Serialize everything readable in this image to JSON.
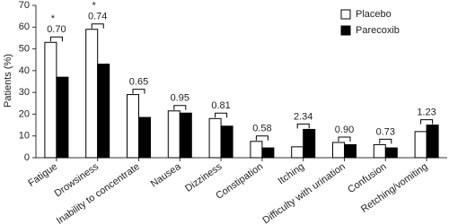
{
  "chart_data": {
    "type": "bar",
    "y_label": "Patients (%)",
    "categories": [
      "Fatigue",
      "Drowsiness",
      "Inability to concentrate",
      "Nausea",
      "Dizziness",
      "Constipation",
      "Itching",
      "Difficulty with urination",
      "Confusion",
      "Retching/vomiting"
    ],
    "series": [
      {
        "name": "Placebo",
        "color": "#ffffff",
        "values": [
          53,
          59,
          29,
          21.5,
          18,
          7.5,
          5,
          7,
          6,
          12
        ]
      },
      {
        "name": "Parecoxib",
        "color": "#000000",
        "values": [
          37,
          43,
          18.5,
          20.5,
          14.5,
          4.5,
          13,
          6,
          4.5,
          15
        ]
      }
    ],
    "annotations": [
      "0.70",
      "0.74",
      "0.65",
      "0.95",
      "0.81",
      "0.58",
      "2.34",
      "0.90",
      "0.73",
      "1.23"
    ],
    "significance": [
      "*",
      "*",
      null,
      null,
      null,
      null,
      null,
      null,
      null,
      null
    ],
    "ylim": [
      0,
      70
    ],
    "yticks": [
      0,
      10,
      20,
      30,
      40,
      50,
      60,
      70
    ],
    "grid": false,
    "legend": "top-right"
  }
}
